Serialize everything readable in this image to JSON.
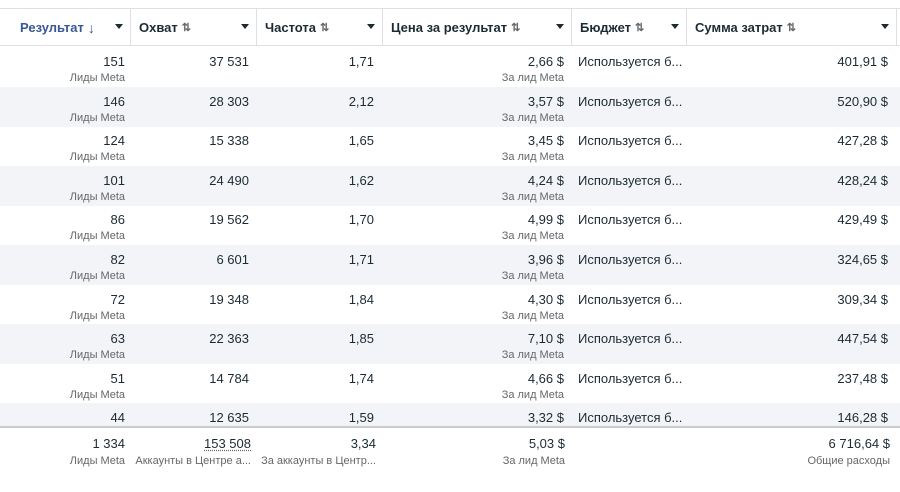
{
  "columns": [
    {
      "label": "Результат",
      "sort_icon": "↓",
      "active": true
    },
    {
      "label": "Охват",
      "sort_icon": "⇅",
      "active": false
    },
    {
      "label": "Частота",
      "sort_icon": "⇅",
      "active": false
    },
    {
      "label": "Цена за результат",
      "sort_icon": "⇅",
      "active": false
    },
    {
      "label": "Бюджет",
      "sort_icon": "⇅",
      "active": false
    },
    {
      "label": "Сумма затрат",
      "sort_icon": "⇅",
      "active": false
    }
  ],
  "result_sub": "Лиды Meta",
  "cost_sub": "За лид Meta",
  "rows": [
    {
      "result": "151",
      "reach": "37 531",
      "frequency": "1,71",
      "cost": "2,66 $",
      "cost_sub": "За лид Meta",
      "budget": "Используется б...",
      "spend": "401,91 $"
    },
    {
      "result": "146",
      "reach": "28 303",
      "frequency": "2,12",
      "cost": "3,57 $",
      "cost_sub": "За лид Meta",
      "budget": "Используется б...",
      "spend": "520,90 $"
    },
    {
      "result": "124",
      "reach": "15 338",
      "frequency": "1,65",
      "cost": "3,45 $",
      "cost_sub": "За лид Meta",
      "budget": "Используется б...",
      "spend": "427,28 $"
    },
    {
      "result": "101",
      "reach": "24 490",
      "frequency": "1,62",
      "cost": "4,24 $",
      "cost_sub": "За лид Meta",
      "budget": "Используется б...",
      "spend": "428,24 $"
    },
    {
      "result": "86",
      "reach": "19 562",
      "frequency": "1,70",
      "cost": "4,99 $",
      "cost_sub": "За лид Meta",
      "budget": "Используется б...",
      "spend": "429,49 $"
    },
    {
      "result": "82",
      "reach": "6 601",
      "frequency": "1,71",
      "cost": "3,96 $",
      "cost_sub": "За лид Meta",
      "budget": "Используется б...",
      "spend": "324,65 $"
    },
    {
      "result": "72",
      "reach": "19 348",
      "frequency": "1,84",
      "cost": "4,30 $",
      "cost_sub": "За лид Meta",
      "budget": "Используется б...",
      "spend": "309,34 $"
    },
    {
      "result": "63",
      "reach": "22 363",
      "frequency": "1,85",
      "cost": "7,10 $",
      "cost_sub": "За лид Meta",
      "budget": "Используется б...",
      "spend": "447,54 $"
    },
    {
      "result": "51",
      "reach": "14 784",
      "frequency": "1,74",
      "cost": "4,66 $",
      "cost_sub": "За лид Meta",
      "budget": "Используется б...",
      "spend": "237,48 $"
    },
    {
      "result": "44",
      "reach": "12 635",
      "frequency": "1,59",
      "cost": "3,32 $",
      "cost_sub": "",
      "budget": "Используется б...",
      "spend": "146,28 $"
    }
  ],
  "totals": {
    "result": "1 334",
    "result_sub": "Лиды Meta",
    "reach": "153 508",
    "reach_sub": "Аккаунты в Центре а...",
    "frequency": "3,34",
    "frequency_sub": "За аккаунты в Центр...",
    "cost": "5,03 $",
    "cost_sub": "За лид Meta",
    "spend": "6 716,64 $",
    "spend_sub": "Общие расходы"
  },
  "colors": {
    "accent": "#385898",
    "alt_row": "#f2f4f7",
    "border": "#dddfe2",
    "muted": "#65676b"
  }
}
